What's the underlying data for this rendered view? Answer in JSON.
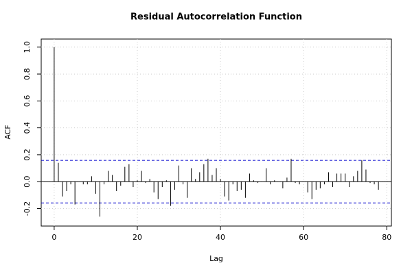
{
  "chart_data": {
    "type": "acf",
    "title": "Residual Autocorrelation Function",
    "xlabel": "Lag",
    "ylabel": "ACF",
    "x": [
      0,
      1,
      2,
      3,
      4,
      5,
      6,
      7,
      8,
      9,
      10,
      11,
      12,
      13,
      14,
      15,
      16,
      17,
      18,
      19,
      20,
      21,
      22,
      23,
      24,
      25,
      26,
      27,
      28,
      29,
      30,
      31,
      32,
      33,
      34,
      35,
      36,
      37,
      38,
      39,
      40,
      41,
      42,
      43,
      44,
      45,
      46,
      47,
      48,
      49,
      50,
      51,
      52,
      53,
      54,
      55,
      56,
      57,
      58,
      59,
      60,
      61,
      62,
      63,
      64,
      65,
      66,
      67,
      68,
      69,
      70,
      71,
      72,
      73,
      74,
      75,
      76,
      77,
      78
    ],
    "values": [
      1.0,
      0.14,
      -0.11,
      -0.07,
      -0.02,
      -0.17,
      0.0,
      -0.02,
      -0.02,
      0.04,
      -0.09,
      -0.26,
      -0.02,
      0.08,
      0.05,
      -0.07,
      -0.03,
      0.11,
      0.13,
      -0.04,
      0.01,
      0.08,
      -0.01,
      0.02,
      -0.08,
      -0.13,
      -0.04,
      0.01,
      -0.18,
      -0.06,
      0.12,
      -0.02,
      -0.12,
      0.1,
      0.02,
      0.07,
      0.13,
      0.17,
      0.05,
      0.1,
      0.02,
      -0.11,
      -0.14,
      -0.02,
      -0.07,
      -0.06,
      -0.12,
      0.06,
      0.01,
      -0.01,
      0.0,
      0.1,
      -0.02,
      0.01,
      0.0,
      -0.05,
      0.03,
      0.17,
      -0.01,
      -0.02,
      0.0,
      -0.08,
      -0.13,
      -0.06,
      -0.05,
      -0.02,
      0.07,
      -0.04,
      0.06,
      0.06,
      0.06,
      -0.04,
      0.04,
      0.08,
      0.16,
      0.09,
      -0.01,
      -0.02,
      -0.06
    ],
    "color": "#000000",
    "conf_limits": [
      0.158,
      -0.158
    ],
    "conf_color": "#0000cc",
    "xlim": [
      -3.12,
      81.12
    ],
    "ylim": [
      -0.33,
      1.06
    ],
    "xticks": [
      0,
      20,
      40,
      60,
      80
    ],
    "yticks": [
      -0.2,
      {
        "value": 0,
        "label": "0.0"
      },
      0.2,
      0.4,
      0.6,
      0.8,
      {
        "value": 1,
        "label": "1.0"
      }
    ],
    "grid": true
  }
}
